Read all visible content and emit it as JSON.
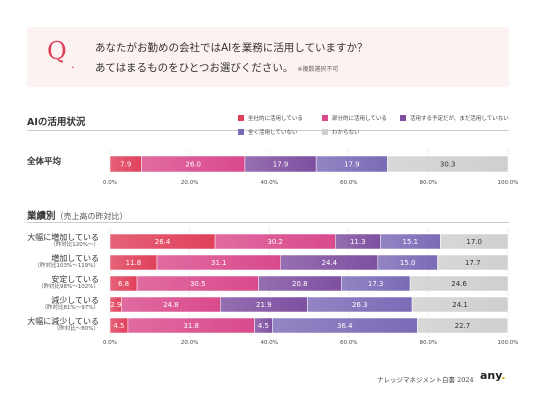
{
  "question": {
    "mark": "Q",
    "dot": ".",
    "line1": "あなたがお勤めの会社ではAIを業務に活用していますか？",
    "line2": "あてはまるものをひとつお選びください。",
    "note": "※複数選択不可"
  },
  "section1": {
    "title": "AIの活用状況"
  },
  "section2": {
    "title": "業績別",
    "subtitle": "（売上高の昨対比）"
  },
  "legend": [
    {
      "label": "全社的に活用している",
      "color": "#e0405a"
    },
    {
      "label": "部分的に活用している",
      "color": "#d94a8c"
    },
    {
      "label": "活用する予定だが、まだ活用していない",
      "color": "#7e4fa0"
    },
    {
      "label": "全く活用していない",
      "color": "#7b6ab6"
    },
    {
      "label": "わからない",
      "color": "#cfcfcf"
    }
  ],
  "chart_data": [
    {
      "type": "bar",
      "orientation": "horizontal-stacked",
      "categories": [
        "全体平均"
      ],
      "series": [
        {
          "name": "全社的に活用している",
          "values": [
            7.9
          ]
        },
        {
          "name": "部分的に活用している",
          "values": [
            26.0
          ]
        },
        {
          "name": "活用する予定だが、まだ活用していない",
          "values": [
            17.9
          ]
        },
        {
          "name": "全く活用していない",
          "values": [
            17.9
          ]
        },
        {
          "name": "わからない",
          "values": [
            30.3
          ]
        }
      ],
      "xlim": [
        0,
        100
      ],
      "ticks": [
        "0.0%",
        "20.0%",
        "40.0%",
        "60.0%",
        "80.0%",
        "100.0%"
      ]
    },
    {
      "type": "bar",
      "orientation": "horizontal-stacked",
      "categories": [
        "大幅に増加している",
        "増加している",
        "安定している",
        "減少している",
        "大幅に減少している"
      ],
      "category_subs": [
        "（昨対比120%〜）",
        "（昨対比103%〜119%）",
        "（昨対比98%〜102%）",
        "（昨対比81%〜97%）",
        "（昨対比〜80%）"
      ],
      "series": [
        {
          "name": "全社的に活用している",
          "values": [
            26.4,
            11.8,
            6.8,
            2.9,
            4.5
          ]
        },
        {
          "name": "部分的に活用している",
          "values": [
            30.2,
            31.1,
            30.5,
            24.8,
            31.8
          ]
        },
        {
          "name": "活用する予定だが、まだ活用していない",
          "values": [
            11.3,
            24.4,
            20.8,
            21.9,
            4.5
          ]
        },
        {
          "name": "全く活用していない",
          "values": [
            15.1,
            15.0,
            17.3,
            26.3,
            36.4
          ]
        },
        {
          "name": "わからない",
          "values": [
            17.0,
            17.7,
            24.6,
            24.1,
            22.7
          ]
        }
      ],
      "xlim": [
        0,
        100
      ],
      "ticks": [
        "0.0%",
        "20.0%",
        "40.0%",
        "60.0%",
        "80.0%",
        "100.0%"
      ]
    }
  ],
  "footer": {
    "text": "ナレッジマネジメント白書 2024",
    "logo": "any",
    "logo_dot": "."
  }
}
